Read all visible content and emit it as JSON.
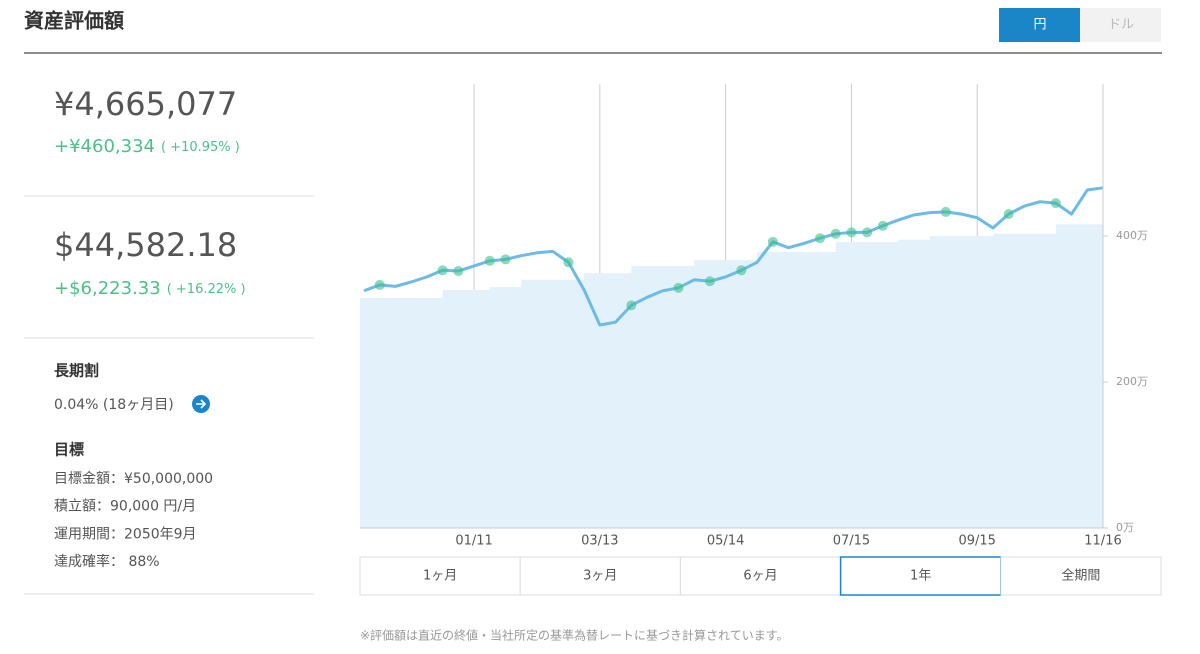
{
  "header": {
    "title": "資産評価額",
    "currency_toggle": [
      "円",
      "ドル"
    ]
  },
  "summary": {
    "jpy": {
      "total": "¥4,665,077",
      "change": "+¥460,334",
      "change_pct": "( +10.95% )"
    },
    "usd": {
      "total": "$44,582.18",
      "change": "+$6,223.33",
      "change_pct": "( +16.22% )"
    },
    "long_term": {
      "label": "長期割",
      "value": "0.04% (18ヶ月目)"
    },
    "goal": {
      "label": "目標",
      "items": [
        "目標金額：¥50,000,000",
        "積立額：90,000 円/月",
        "運用期間：2050年9月",
        "達成確率： 88%"
      ]
    }
  },
  "chart_data": {
    "type": "line",
    "categories": [
      null,
      null,
      null,
      null,
      null,
      null,
      null,
      "01/11",
      null,
      null,
      null,
      null,
      null,
      null,
      null,
      "03/13",
      null,
      null,
      null,
      null,
      null,
      null,
      null,
      "05/14",
      null,
      null,
      null,
      null,
      null,
      null,
      null,
      "07/15",
      null,
      null,
      null,
      null,
      null,
      null,
      null,
      "09/15",
      null,
      null,
      null,
      null,
      null,
      null,
      null,
      "11/16"
    ],
    "series": [
      {
        "color": "#6bbbe6",
        "style": "line",
        "values": [
          325,
          333,
          331,
          337,
          344,
          353,
          352,
          359,
          366,
          368,
          373,
          377,
          379,
          364,
          326,
          278,
          282,
          305,
          316,
          325,
          329,
          340,
          338,
          344,
          353,
          364,
          392,
          384,
          390,
          397,
          403,
          405,
          405,
          414,
          422,
          429,
          432,
          433,
          430,
          425,
          411,
          430,
          441,
          447,
          445,
          430,
          463,
          466
        ]
      },
      {
        "color": "#e3f1fa",
        "style": "area",
        "values": [
          315,
          315,
          315,
          315,
          315,
          326,
          326,
          326,
          330,
          330,
          340,
          340,
          340,
          340,
          349,
          349,
          349,
          359,
          359,
          359,
          359,
          367,
          367,
          367,
          367,
          378,
          378,
          378,
          378,
          378,
          392,
          392,
          392,
          392,
          395,
          395,
          400,
          400,
          400,
          400,
          403,
          403,
          403,
          403,
          416,
          416,
          416,
          416
        ]
      },
      {
        "color": "#3cc08f",
        "style": "markers",
        "values": [
          null,
          333,
          null,
          null,
          null,
          353,
          352,
          null,
          366,
          368,
          null,
          null,
          null,
          364,
          null,
          null,
          null,
          305,
          null,
          null,
          329,
          null,
          338,
          null,
          353,
          null,
          392,
          null,
          null,
          397,
          403,
          405,
          405,
          414,
          null,
          null,
          null,
          433,
          null,
          null,
          null,
          430,
          null,
          null,
          445,
          null,
          null,
          null
        ]
      }
    ],
    "ylim": [
      0,
      600
    ],
    "yticks": [
      {
        "value": 0,
        "label": "0万"
      },
      {
        "value": 200,
        "label": "200万"
      },
      {
        "value": 400,
        "label": "400万"
      }
    ]
  },
  "periods": {
    "labels": [
      "1ヶ月",
      "3ヶ月",
      "6ヶ月",
      "1年",
      "全期間"
    ],
    "selected": 3
  },
  "footnote": "※評価額は直近の終値・当社所定の基準為替レートに基づき計算されています。"
}
